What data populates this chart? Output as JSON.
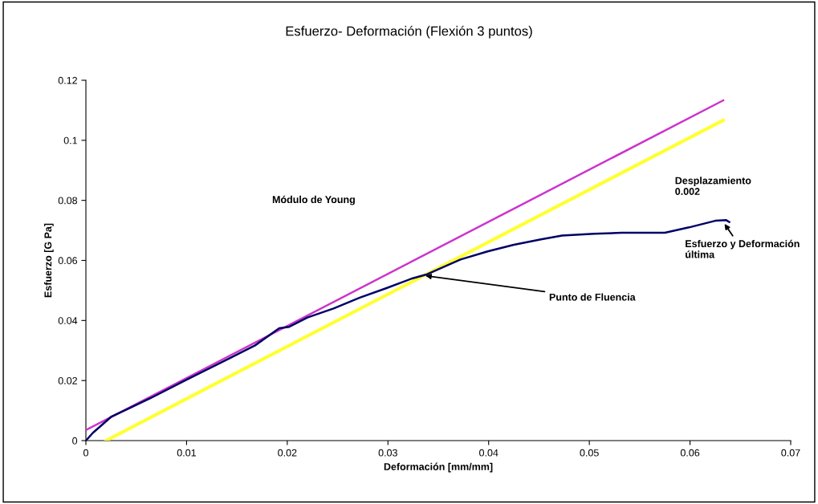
{
  "chart_data": {
    "type": "line",
    "title": "Esfuerzo- Deformación (Flexión 3 puntos)",
    "xlabel": "Deformación [mm/mm]",
    "ylabel": "Esfuerzo [G Pa]",
    "series": [
      {
        "color": "#000066",
        "x": [
          0,
          0.0007,
          0.0025,
          0.0064,
          0.01,
          0.0142,
          0.0168,
          0.0192,
          0.0202,
          0.022,
          0.0246,
          0.0272,
          0.0298,
          0.0324,
          0.0339,
          0.0372,
          0.0399,
          0.0425,
          0.0452,
          0.0473,
          0.0505,
          0.0532,
          0.0575,
          0.0599,
          0.0625,
          0.0636,
          0.0639
        ],
        "values": [
          0,
          0.0026,
          0.0079,
          0.0141,
          0.0203,
          0.0273,
          0.0317,
          0.0374,
          0.0379,
          0.041,
          0.044,
          0.0476,
          0.0507,
          0.054,
          0.0554,
          0.0603,
          0.063,
          0.0652,
          0.067,
          0.0683,
          0.0689,
          0.0692,
          0.0692,
          0.071,
          0.0732,
          0.0734,
          0.0728
        ]
      },
      {
        "color": "#cc33cc",
        "x": [
          0,
          0.0633
        ],
        "values": [
          0.0035,
          0.1133
        ]
      },
      {
        "color": "#ffff33",
        "x": [
          0.002,
          0.0633
        ],
        "values": [
          0,
          0.1067
        ]
      }
    ],
    "xlim": [
      0,
      0.07
    ],
    "xticks": [
      0,
      0.01,
      0.02,
      0.03,
      0.04,
      0.05,
      0.06,
      0.07
    ],
    "ylim": [
      0,
      0.12
    ],
    "yticks": [
      0,
      0.02,
      0.04,
      0.06,
      0.08,
      0.1,
      0.12
    ],
    "grid": false,
    "marker": "none",
    "line_style": "solid",
    "annotations": [
      "Módulo de Young",
      "Desplazamiento\n0.002",
      {
        "text": "Esfuerzo y Deformación\núltima",
        "x": 0.0633,
        "y": 0.0728
      },
      {
        "text": "Punto de Fluencia",
        "x": 0.0335,
        "y": 0.055
      }
    ]
  }
}
